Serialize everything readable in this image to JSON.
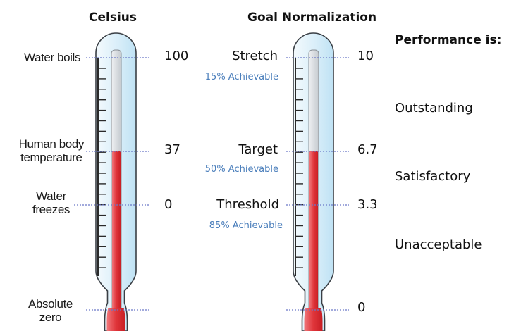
{
  "celsius": {
    "title": "Celsius",
    "markers": [
      {
        "label_lines": [
          "Water boils"
        ],
        "value": "100"
      },
      {
        "label_lines": [
          "Human body",
          "temperature"
        ],
        "value": "37"
      },
      {
        "label_lines": [
          "Water",
          "freezes"
        ],
        "value": "0"
      },
      {
        "label_lines": [
          "Absolute",
          "zero"
        ],
        "value": ""
      }
    ],
    "fill_level_value": 37
  },
  "goal": {
    "title": "Goal Normalization",
    "markers": [
      {
        "label": "Stretch",
        "value": "10",
        "achievable": "15% Achievable"
      },
      {
        "label": "Target",
        "value": "6.7",
        "achievable": "50% Achievable"
      },
      {
        "label": "Threshold",
        "value": "3.3",
        "achievable": "85% Achievable"
      },
      {
        "label": "",
        "value": "0",
        "achievable": ""
      }
    ],
    "fill_level_value": 6.7
  },
  "performance": {
    "title": "Performance is:",
    "levels": [
      "Outstanding",
      "Satisfactory",
      "Unacceptable"
    ]
  },
  "colors": {
    "mercury": "#e0353a",
    "glass": "#d6ecf8",
    "guide_line": "#6a78c8",
    "achievable_text": "#4a7ebb"
  }
}
